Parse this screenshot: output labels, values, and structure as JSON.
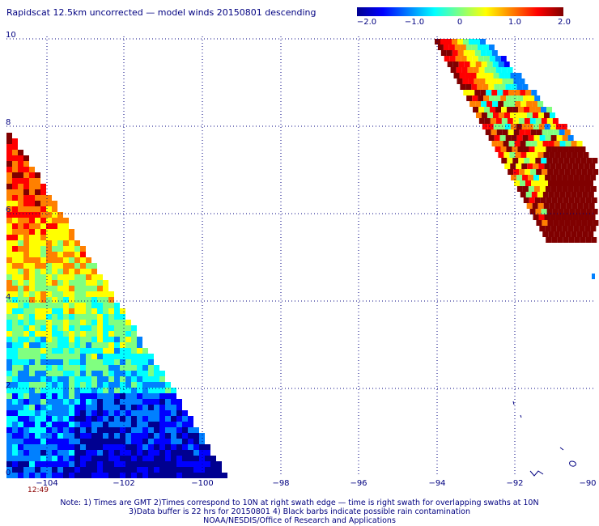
{
  "title": "Rapidscat 12.5km uncorrected — model winds 20150801 descending",
  "colorbar": {
    "ticks": [
      "−2.0",
      "−1.0",
      "0",
      "1.0",
      "2.0"
    ],
    "colors": [
      "#000090",
      "#0000ff",
      "#0080ff",
      "#00ffff",
      "#80ff80",
      "#ffff00",
      "#ff8000",
      "#ff0000",
      "#800000"
    ]
  },
  "lat_labels": [
    "10",
    "8",
    "6",
    "4",
    "2",
    "0"
  ],
  "lon_labels": [
    "−104",
    "−102",
    "−100",
    "−98",
    "−96",
    "−94",
    "−92",
    "−90"
  ],
  "time_label": "12:49",
  "notes": [
    "Note: 1) Times are GMT 2)Times correspond to 10N at right swath edge — time is right swath for overlapping swaths at 10N",
    "3)Data buffer is 22 hrs for 20150801 4) Black barbs indicate possible rain contamination",
    "NOAA/NESDIS/Office of Research and Applications"
  ]
}
